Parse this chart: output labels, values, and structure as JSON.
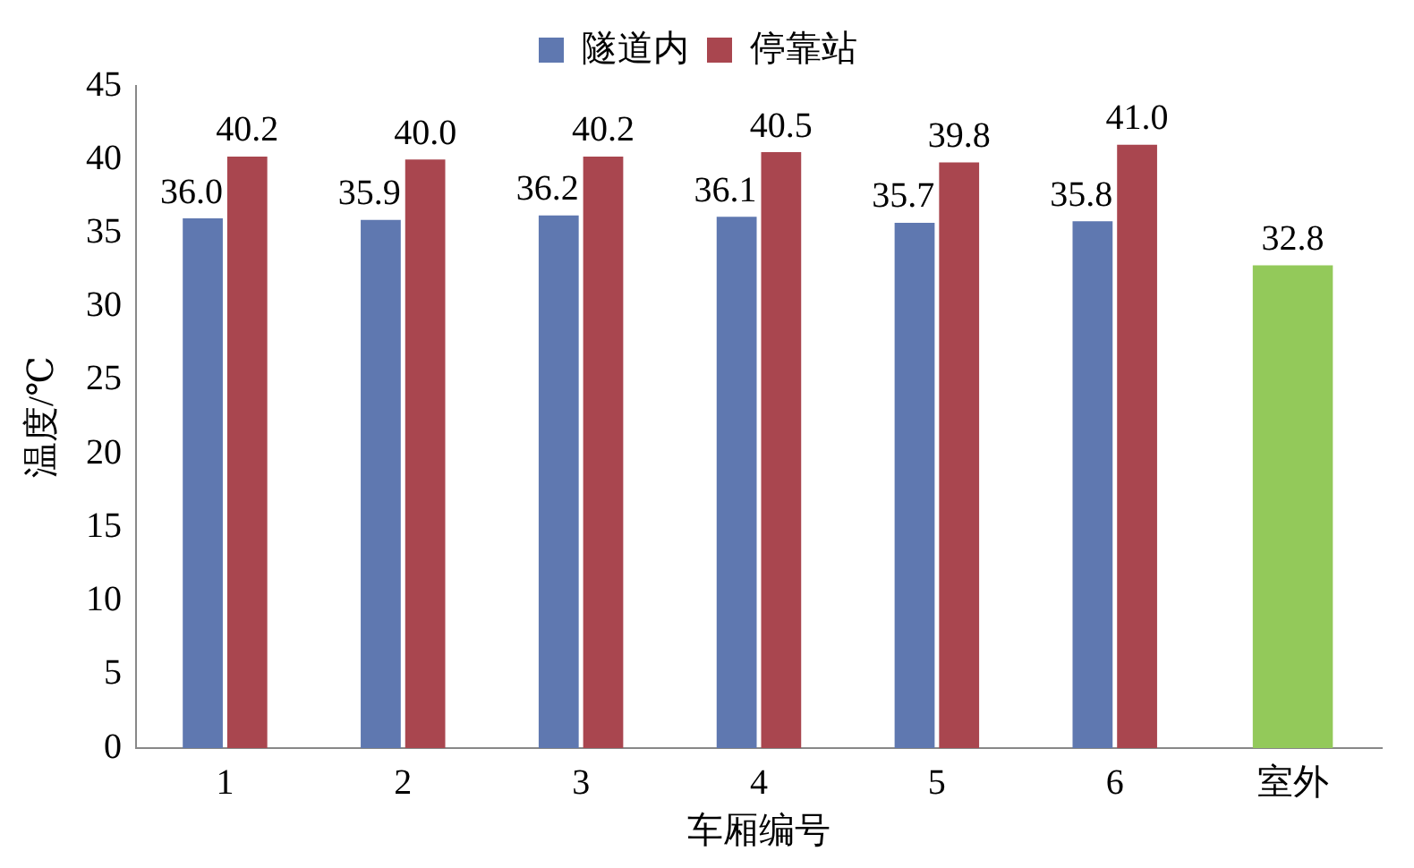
{
  "chart_data": {
    "type": "bar",
    "xlabel": "车厢编号",
    "ylabel": "温度/℃",
    "categories": [
      "1",
      "2",
      "3",
      "4",
      "5",
      "6",
      "室外"
    ],
    "series": [
      {
        "name": "隧道内",
        "color": "#5f78b0",
        "values": [
          36.0,
          35.9,
          36.2,
          36.1,
          35.7,
          35.8,
          null
        ],
        "value_labels": [
          "36.0",
          "35.9",
          "36.2",
          "36.1",
          "35.7",
          "35.8",
          null
        ]
      },
      {
        "name": "停靠站",
        "color": "#a9464f",
        "values": [
          40.2,
          40.0,
          40.2,
          40.5,
          39.8,
          41.0,
          null
        ],
        "value_labels": [
          "40.2",
          "40.0",
          "40.2",
          "40.5",
          "39.8",
          "41.0",
          null
        ]
      },
      {
        "color": "#93c95a",
        "values": [
          null,
          null,
          null,
          null,
          null,
          null,
          32.8
        ],
        "value_labels": [
          null,
          null,
          null,
          null,
          null,
          null,
          "32.8"
        ]
      }
    ],
    "ylim": [
      0,
      45
    ],
    "yticks": [
      0,
      5,
      10,
      15,
      20,
      25,
      30,
      35,
      40,
      45
    ],
    "grid": false,
    "legend": "top"
  }
}
